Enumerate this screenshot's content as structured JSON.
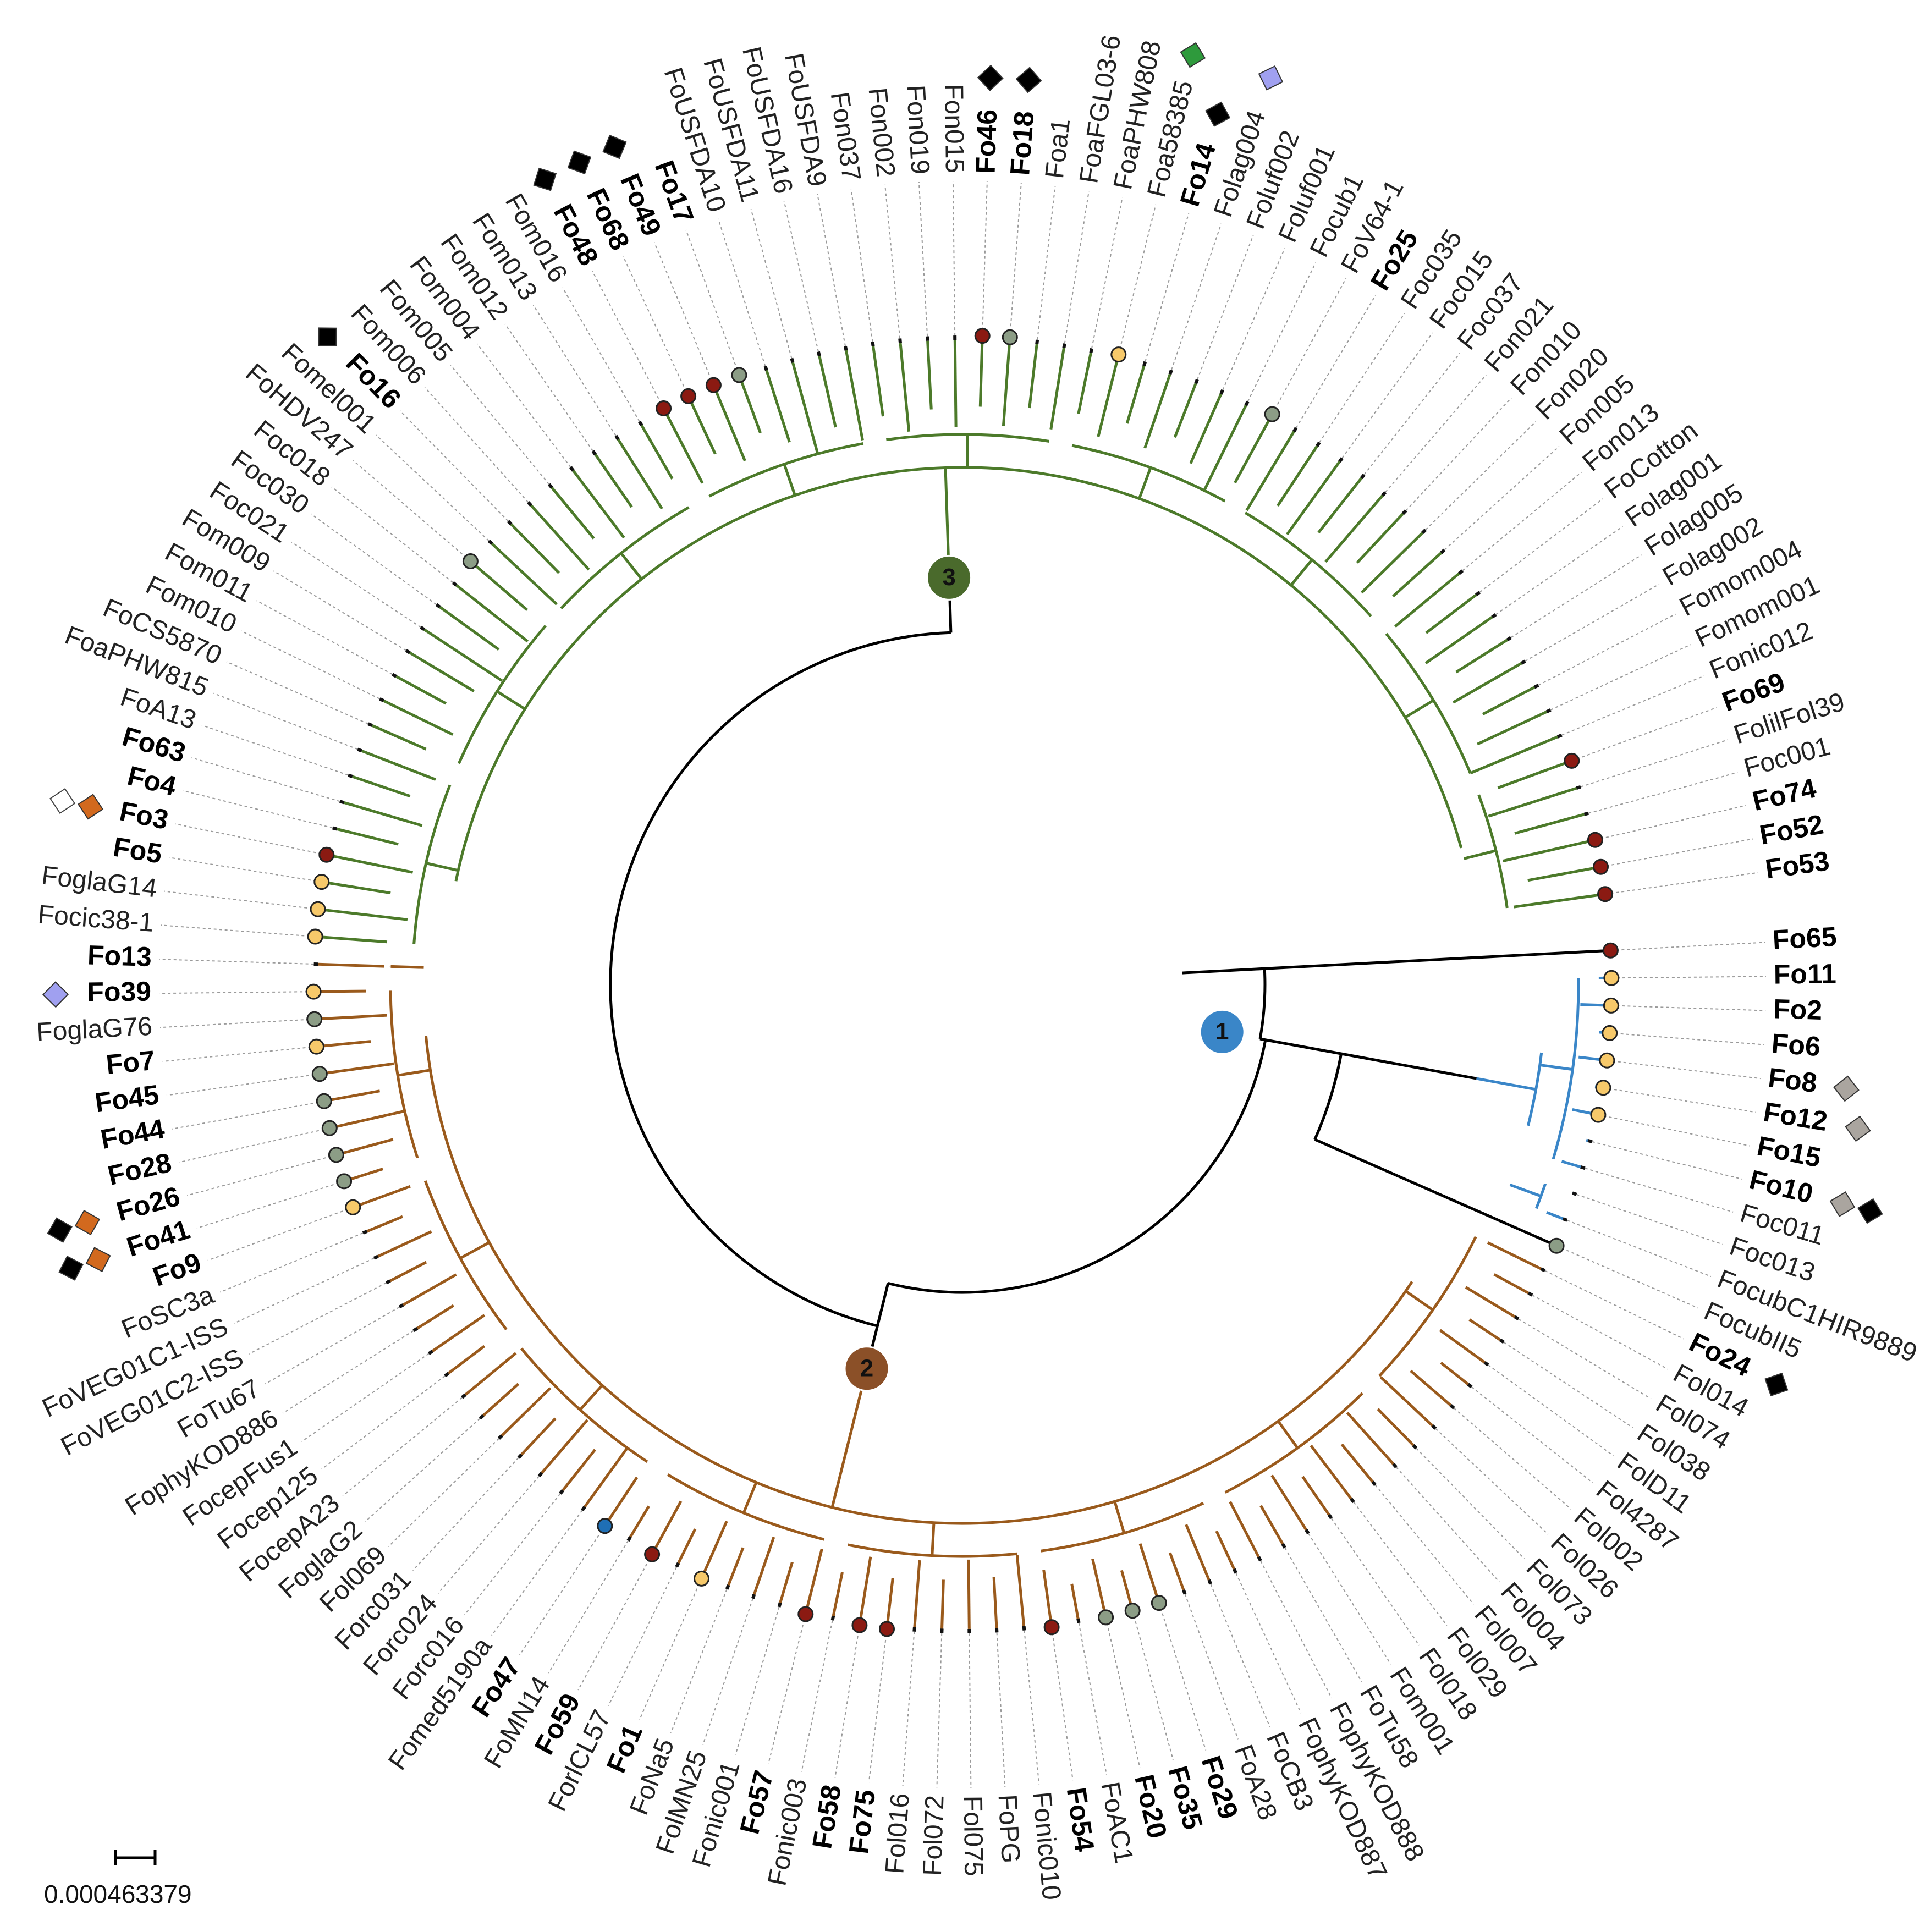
{
  "scale_bar": {
    "label": "0.000463379"
  },
  "clade_labels": [
    {
      "id": "1",
      "color": "#3a86c8"
    },
    {
      "id": "2",
      "color": "#8b5028"
    },
    {
      "id": "3",
      "color": "#4a6a2c"
    }
  ],
  "colors": {
    "clade1": "#3a86c8",
    "clade2": "#9a5a1c",
    "clade3": "#4c7a2a",
    "root": "#000000",
    "dot_red": "#8b1a12",
    "dot_yellow": "#f7c96a",
    "dot_gray": "#8c9d86",
    "dot_blue": "#1f6fb5",
    "square_black": "#000000",
    "square_orange": "#d2691e",
    "square_white": "#ffffff",
    "square_purple": "#a0a0f0",
    "square_green": "#2e9a3c",
    "square_gray": "#aaa59f"
  },
  "leaves": [
    {
      "name": "Fo65",
      "bold": true,
      "clade": "root",
      "dot": "red"
    },
    {
      "name": "Fo11",
      "bold": true,
      "clade": "1",
      "dot": "yellow"
    },
    {
      "name": "Fo2",
      "bold": true,
      "clade": "1",
      "dot": "yellow"
    },
    {
      "name": "Fo6",
      "bold": true,
      "clade": "1",
      "dot": "yellow"
    },
    {
      "name": "Fo8",
      "bold": true,
      "clade": "1",
      "dot": "yellow",
      "squares": [
        "gray"
      ]
    },
    {
      "name": "Fo12",
      "bold": true,
      "clade": "1",
      "dot": "yellow",
      "squares": [
        "gray"
      ]
    },
    {
      "name": "Fo15",
      "bold": true,
      "clade": "1",
      "dot": "yellow"
    },
    {
      "name": "Fo10",
      "bold": true,
      "clade": "1",
      "squares": [
        "gray",
        "black"
      ]
    },
    {
      "name": "Foc011",
      "bold": false,
      "clade": "1"
    },
    {
      "name": "Foc013",
      "bold": false,
      "clade": "1"
    },
    {
      "name": "FocubC1HIR9889",
      "bold": false,
      "clade": "1"
    },
    {
      "name": "FocubII5",
      "bold": false,
      "clade": "root",
      "dot": "gray"
    },
    {
      "name": "Fo24",
      "bold": true,
      "clade": "2",
      "squares": [
        "black"
      ]
    },
    {
      "name": "Fol014",
      "bold": false,
      "clade": "2"
    },
    {
      "name": "Fol074",
      "bold": false,
      "clade": "2"
    },
    {
      "name": "Fol038",
      "bold": false,
      "clade": "2"
    },
    {
      "name": "FolD11",
      "bold": false,
      "clade": "2"
    },
    {
      "name": "Fol4287",
      "bold": false,
      "clade": "2"
    },
    {
      "name": "Fol002",
      "bold": false,
      "clade": "2"
    },
    {
      "name": "Fol026",
      "bold": false,
      "clade": "2"
    },
    {
      "name": "Fol073",
      "bold": false,
      "clade": "2"
    },
    {
      "name": "Fol004",
      "bold": false,
      "clade": "2"
    },
    {
      "name": "Fol007",
      "bold": false,
      "clade": "2"
    },
    {
      "name": "Fol029",
      "bold": false,
      "clade": "2"
    },
    {
      "name": "Fol018",
      "bold": false,
      "clade": "2"
    },
    {
      "name": "Fom001",
      "bold": false,
      "clade": "2"
    },
    {
      "name": "FoTu58",
      "bold": false,
      "clade": "2"
    },
    {
      "name": "FophyKOD888",
      "bold": false,
      "clade": "2"
    },
    {
      "name": "FophyKOD887",
      "bold": false,
      "clade": "2"
    },
    {
      "name": "FoCB3",
      "bold": false,
      "clade": "2"
    },
    {
      "name": "FoA28",
      "bold": false,
      "clade": "2"
    },
    {
      "name": "Fo29",
      "bold": true,
      "clade": "2",
      "dot": "gray"
    },
    {
      "name": "Fo35",
      "bold": true,
      "clade": "2",
      "dot": "gray"
    },
    {
      "name": "Fo20",
      "bold": true,
      "clade": "2",
      "dot": "gray"
    },
    {
      "name": "FoAC1",
      "bold": false,
      "clade": "2"
    },
    {
      "name": "Fo54",
      "bold": true,
      "clade": "2",
      "dot": "red"
    },
    {
      "name": "Fonic010",
      "bold": false,
      "clade": "2"
    },
    {
      "name": "FoPG",
      "bold": false,
      "clade": "2"
    },
    {
      "name": "Fol075",
      "bold": false,
      "clade": "2"
    },
    {
      "name": "Fol072",
      "bold": false,
      "clade": "2"
    },
    {
      "name": "Fol016",
      "bold": false,
      "clade": "2"
    },
    {
      "name": "Fo75",
      "bold": true,
      "clade": "2",
      "dot": "red"
    },
    {
      "name": "Fo58",
      "bold": true,
      "clade": "2",
      "dot": "red"
    },
    {
      "name": "Fonic003",
      "bold": false,
      "clade": "2"
    },
    {
      "name": "Fo57",
      "bold": true,
      "clade": "2",
      "dot": "red"
    },
    {
      "name": "Fonic001",
      "bold": false,
      "clade": "2"
    },
    {
      "name": "FolMN25",
      "bold": false,
      "clade": "2"
    },
    {
      "name": "FoNa5",
      "bold": false,
      "clade": "2"
    },
    {
      "name": "Fo1",
      "bold": true,
      "clade": "2",
      "dot": "yellow"
    },
    {
      "name": "ForlCL57",
      "bold": false,
      "clade": "2"
    },
    {
      "name": "Fo59",
      "bold": true,
      "clade": "2",
      "dot": "red"
    },
    {
      "name": "FoMN14",
      "bold": false,
      "clade": "2"
    },
    {
      "name": "Fo47",
      "bold": true,
      "clade": "2",
      "dot": "blue"
    },
    {
      "name": "Fomed5190a",
      "bold": false,
      "clade": "2"
    },
    {
      "name": "Forc016",
      "bold": false,
      "clade": "2"
    },
    {
      "name": "Forc024",
      "bold": false,
      "clade": "2"
    },
    {
      "name": "Forc031",
      "bold": false,
      "clade": "2"
    },
    {
      "name": "Fol069",
      "bold": false,
      "clade": "2"
    },
    {
      "name": "FoglaG2",
      "bold": false,
      "clade": "2"
    },
    {
      "name": "FocepA23",
      "bold": false,
      "clade": "2"
    },
    {
      "name": "Focep125",
      "bold": false,
      "clade": "2"
    },
    {
      "name": "FocepFus1",
      "bold": false,
      "clade": "2"
    },
    {
      "name": "FophyKOD886",
      "bold": false,
      "clade": "2"
    },
    {
      "name": "FoTu67",
      "bold": false,
      "clade": "2"
    },
    {
      "name": "FoVEG01C2-ISS",
      "bold": false,
      "clade": "2"
    },
    {
      "name": "FoVEG01C1-ISS",
      "bold": false,
      "clade": "2"
    },
    {
      "name": "FoSC3a",
      "bold": false,
      "clade": "2"
    },
    {
      "name": "Fo9",
      "bold": true,
      "clade": "2",
      "dot": "yellow"
    },
    {
      "name": "Fo41",
      "bold": true,
      "clade": "2",
      "dot": "gray",
      "squares": [
        "orange",
        "black"
      ]
    },
    {
      "name": "Fo26",
      "bold": true,
      "clade": "2",
      "dot": "gray",
      "squares": [
        "orange",
        "black"
      ]
    },
    {
      "name": "Fo28",
      "bold": true,
      "clade": "2",
      "dot": "gray"
    },
    {
      "name": "Fo44",
      "bold": true,
      "clade": "2",
      "dot": "gray"
    },
    {
      "name": "Fo45",
      "bold": true,
      "clade": "2",
      "dot": "gray"
    },
    {
      "name": "Fo7",
      "bold": true,
      "clade": "2",
      "dot": "yellow"
    },
    {
      "name": "FoglaG76",
      "bold": false,
      "clade": "2",
      "dot": "gray"
    },
    {
      "name": "Fo39",
      "bold": true,
      "clade": "2",
      "dot": "yellow",
      "squares": [
        "purple"
      ]
    },
    {
      "name": "Fo13",
      "bold": true,
      "clade": "2"
    },
    {
      "name": "Focic38-1",
      "bold": false,
      "clade": "3",
      "dot": "yellow"
    },
    {
      "name": "FoglaG14",
      "bold": false,
      "clade": "3",
      "dot": "yellow"
    },
    {
      "name": "Fo5",
      "bold": true,
      "clade": "3",
      "dot": "yellow"
    },
    {
      "name": "Fo3",
      "bold": true,
      "clade": "3",
      "dot": "red",
      "squares": [
        "orange",
        "white"
      ]
    },
    {
      "name": "Fo4",
      "bold": true,
      "clade": "3"
    },
    {
      "name": "Fo63",
      "bold": true,
      "clade": "3"
    },
    {
      "name": "FoA13",
      "bold": false,
      "clade": "3"
    },
    {
      "name": "FoaPHW815",
      "bold": false,
      "clade": "3"
    },
    {
      "name": "FoCS5870",
      "bold": false,
      "clade": "3"
    },
    {
      "name": "Fom010",
      "bold": false,
      "clade": "3"
    },
    {
      "name": "Fom011",
      "bold": false,
      "clade": "3"
    },
    {
      "name": "Fom009",
      "bold": false,
      "clade": "3"
    },
    {
      "name": "Foc021",
      "bold": false,
      "clade": "3"
    },
    {
      "name": "Foc030",
      "bold": false,
      "clade": "3"
    },
    {
      "name": "Foc018",
      "bold": false,
      "clade": "3"
    },
    {
      "name": "FoHDV247",
      "bold": false,
      "clade": "3",
      "dot": "gray"
    },
    {
      "name": "Fomel001",
      "bold": false,
      "clade": "3"
    },
    {
      "name": "Fo16",
      "bold": true,
      "clade": "3",
      "squares": [
        "black"
      ]
    },
    {
      "name": "Fom006",
      "bold": false,
      "clade": "3"
    },
    {
      "name": "Fom005",
      "bold": false,
      "clade": "3"
    },
    {
      "name": "Fom004",
      "bold": false,
      "clade": "3"
    },
    {
      "name": "Fom012",
      "bold": false,
      "clade": "3"
    },
    {
      "name": "Fom013",
      "bold": false,
      "clade": "3"
    },
    {
      "name": "Fom016",
      "bold": false,
      "clade": "3"
    },
    {
      "name": "Fo48",
      "bold": true,
      "clade": "3",
      "dot": "red",
      "squares": [
        "black"
      ]
    },
    {
      "name": "Fo68",
      "bold": true,
      "clade": "3",
      "dot": "red",
      "squares": [
        "black"
      ]
    },
    {
      "name": "Fo49",
      "bold": true,
      "clade": "3",
      "dot": "red",
      "squares": [
        "black"
      ]
    },
    {
      "name": "Fo17",
      "bold": true,
      "clade": "3",
      "dot": "gray"
    },
    {
      "name": "FoUSFDA10",
      "bold": false,
      "clade": "3"
    },
    {
      "name": "FoUSFDA11",
      "bold": false,
      "clade": "3"
    },
    {
      "name": "FoUSFDA16",
      "bold": false,
      "clade": "3"
    },
    {
      "name": "FoUSFDA9",
      "bold": false,
      "clade": "3"
    },
    {
      "name": "Fon037",
      "bold": false,
      "clade": "3"
    },
    {
      "name": "Fon002",
      "bold": false,
      "clade": "3"
    },
    {
      "name": "Fon019",
      "bold": false,
      "clade": "3"
    },
    {
      "name": "Fon015",
      "bold": false,
      "clade": "3"
    },
    {
      "name": "Fo46",
      "bold": true,
      "clade": "3",
      "dot": "red",
      "squares": [
        "black"
      ]
    },
    {
      "name": "Fo18",
      "bold": true,
      "clade": "3",
      "dot": "gray",
      "squares": [
        "black"
      ]
    },
    {
      "name": "Foa1",
      "bold": false,
      "clade": "3"
    },
    {
      "name": "FoaFGL03-6",
      "bold": false,
      "clade": "3"
    },
    {
      "name": "FoaPHW808",
      "bold": false,
      "clade": "3"
    },
    {
      "name": "Foa58385",
      "bold": false,
      "clade": "3",
      "dot": "yellow",
      "squares": [
        "green"
      ]
    },
    {
      "name": "Fo14",
      "bold": true,
      "clade": "3",
      "squares": [
        "black"
      ]
    },
    {
      "name": "Folag004",
      "bold": false,
      "clade": "3",
      "squares": [
        "purple"
      ]
    },
    {
      "name": "Foluf002",
      "bold": false,
      "clade": "3"
    },
    {
      "name": "Foluf001",
      "bold": false,
      "clade": "3"
    },
    {
      "name": "Focub1",
      "bold": false,
      "clade": "3"
    },
    {
      "name": "FoV64-1",
      "bold": false,
      "clade": "3",
      "dot": "gray"
    },
    {
      "name": "Fo25",
      "bold": true,
      "clade": "3"
    },
    {
      "name": "Foc035",
      "bold": false,
      "clade": "3"
    },
    {
      "name": "Foc015",
      "bold": false,
      "clade": "3"
    },
    {
      "name": "Foc037",
      "bold": false,
      "clade": "3"
    },
    {
      "name": "Fon021",
      "bold": false,
      "clade": "3"
    },
    {
      "name": "Fon010",
      "bold": false,
      "clade": "3"
    },
    {
      "name": "Fon020",
      "bold": false,
      "clade": "3"
    },
    {
      "name": "Fon005",
      "bold": false,
      "clade": "3"
    },
    {
      "name": "Fon013",
      "bold": false,
      "clade": "3"
    },
    {
      "name": "FoCotton",
      "bold": false,
      "clade": "3"
    },
    {
      "name": "Folag001",
      "bold": false,
      "clade": "3"
    },
    {
      "name": "Folag005",
      "bold": false,
      "clade": "3"
    },
    {
      "name": "Folag002",
      "bold": false,
      "clade": "3"
    },
    {
      "name": "Fomom004",
      "bold": false,
      "clade": "3"
    },
    {
      "name": "Fomom001",
      "bold": false,
      "clade": "3"
    },
    {
      "name": "Fonic012",
      "bold": false,
      "clade": "3"
    },
    {
      "name": "Fo69",
      "bold": true,
      "clade": "3",
      "dot": "red"
    },
    {
      "name": "FolilFol39",
      "bold": false,
      "clade": "3"
    },
    {
      "name": "Foc001",
      "bold": false,
      "clade": "3"
    },
    {
      "name": "Fo74",
      "bold": true,
      "clade": "3",
      "dot": "red"
    },
    {
      "name": "Fo52",
      "bold": true,
      "clade": "3",
      "dot": "red"
    },
    {
      "name": "Fo53",
      "bold": true,
      "clade": "3",
      "dot": "red"
    }
  ]
}
